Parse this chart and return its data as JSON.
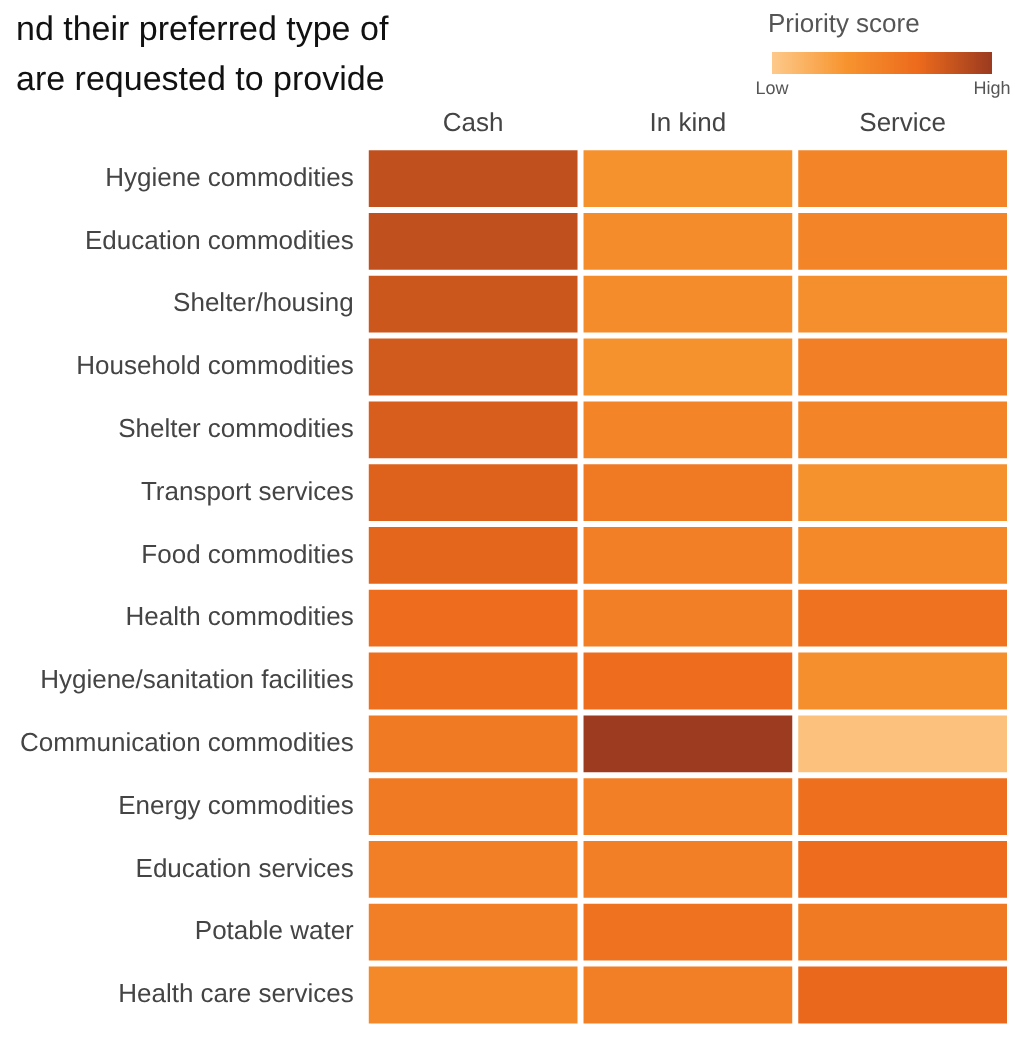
{
  "chart_data": {
    "type": "heatmap",
    "title": "nd their preferred type of\n are requested to provide",
    "clabel": "Priority score",
    "categories": [
      "Cash",
      "In kind",
      "Service"
    ],
    "y_categories": [
      "Hygiene commodities",
      "Education commodities",
      "Shelter/housing",
      "Household commodities",
      "Shelter commodities",
      "Transport services",
      "Food commodities",
      "Health commodities",
      "Hygiene/sanitation facilities",
      "Communication commodities",
      "Energy commodities",
      "Education services",
      "Potable water",
      "Health care services"
    ],
    "cells": [
      [
        0.85,
        0.35,
        0.45
      ],
      [
        0.85,
        0.4,
        0.45
      ],
      [
        0.8,
        0.4,
        0.38
      ],
      [
        0.78,
        0.35,
        0.5
      ],
      [
        0.75,
        0.45,
        0.45
      ],
      [
        0.72,
        0.55,
        0.35
      ],
      [
        0.7,
        0.5,
        0.42
      ],
      [
        0.65,
        0.5,
        0.6
      ],
      [
        0.62,
        0.65,
        0.38
      ],
      [
        0.55,
        1,
        0.05
      ],
      [
        0.55,
        0.5,
        0.62
      ],
      [
        0.5,
        0.5,
        0.65
      ],
      [
        0.5,
        0.6,
        0.55
      ],
      [
        0.42,
        0.5,
        0.68
      ]
    ],
    "clim": [
      0,
      1
    ],
    "cticks": [
      {
        "value": 0,
        "label": "Low"
      },
      {
        "value": 1,
        "label": "High"
      }
    ],
    "colors": [
      "#fdc98a",
      "#f7942f",
      "#ec6a1c",
      "#9c3b1f"
    ]
  }
}
